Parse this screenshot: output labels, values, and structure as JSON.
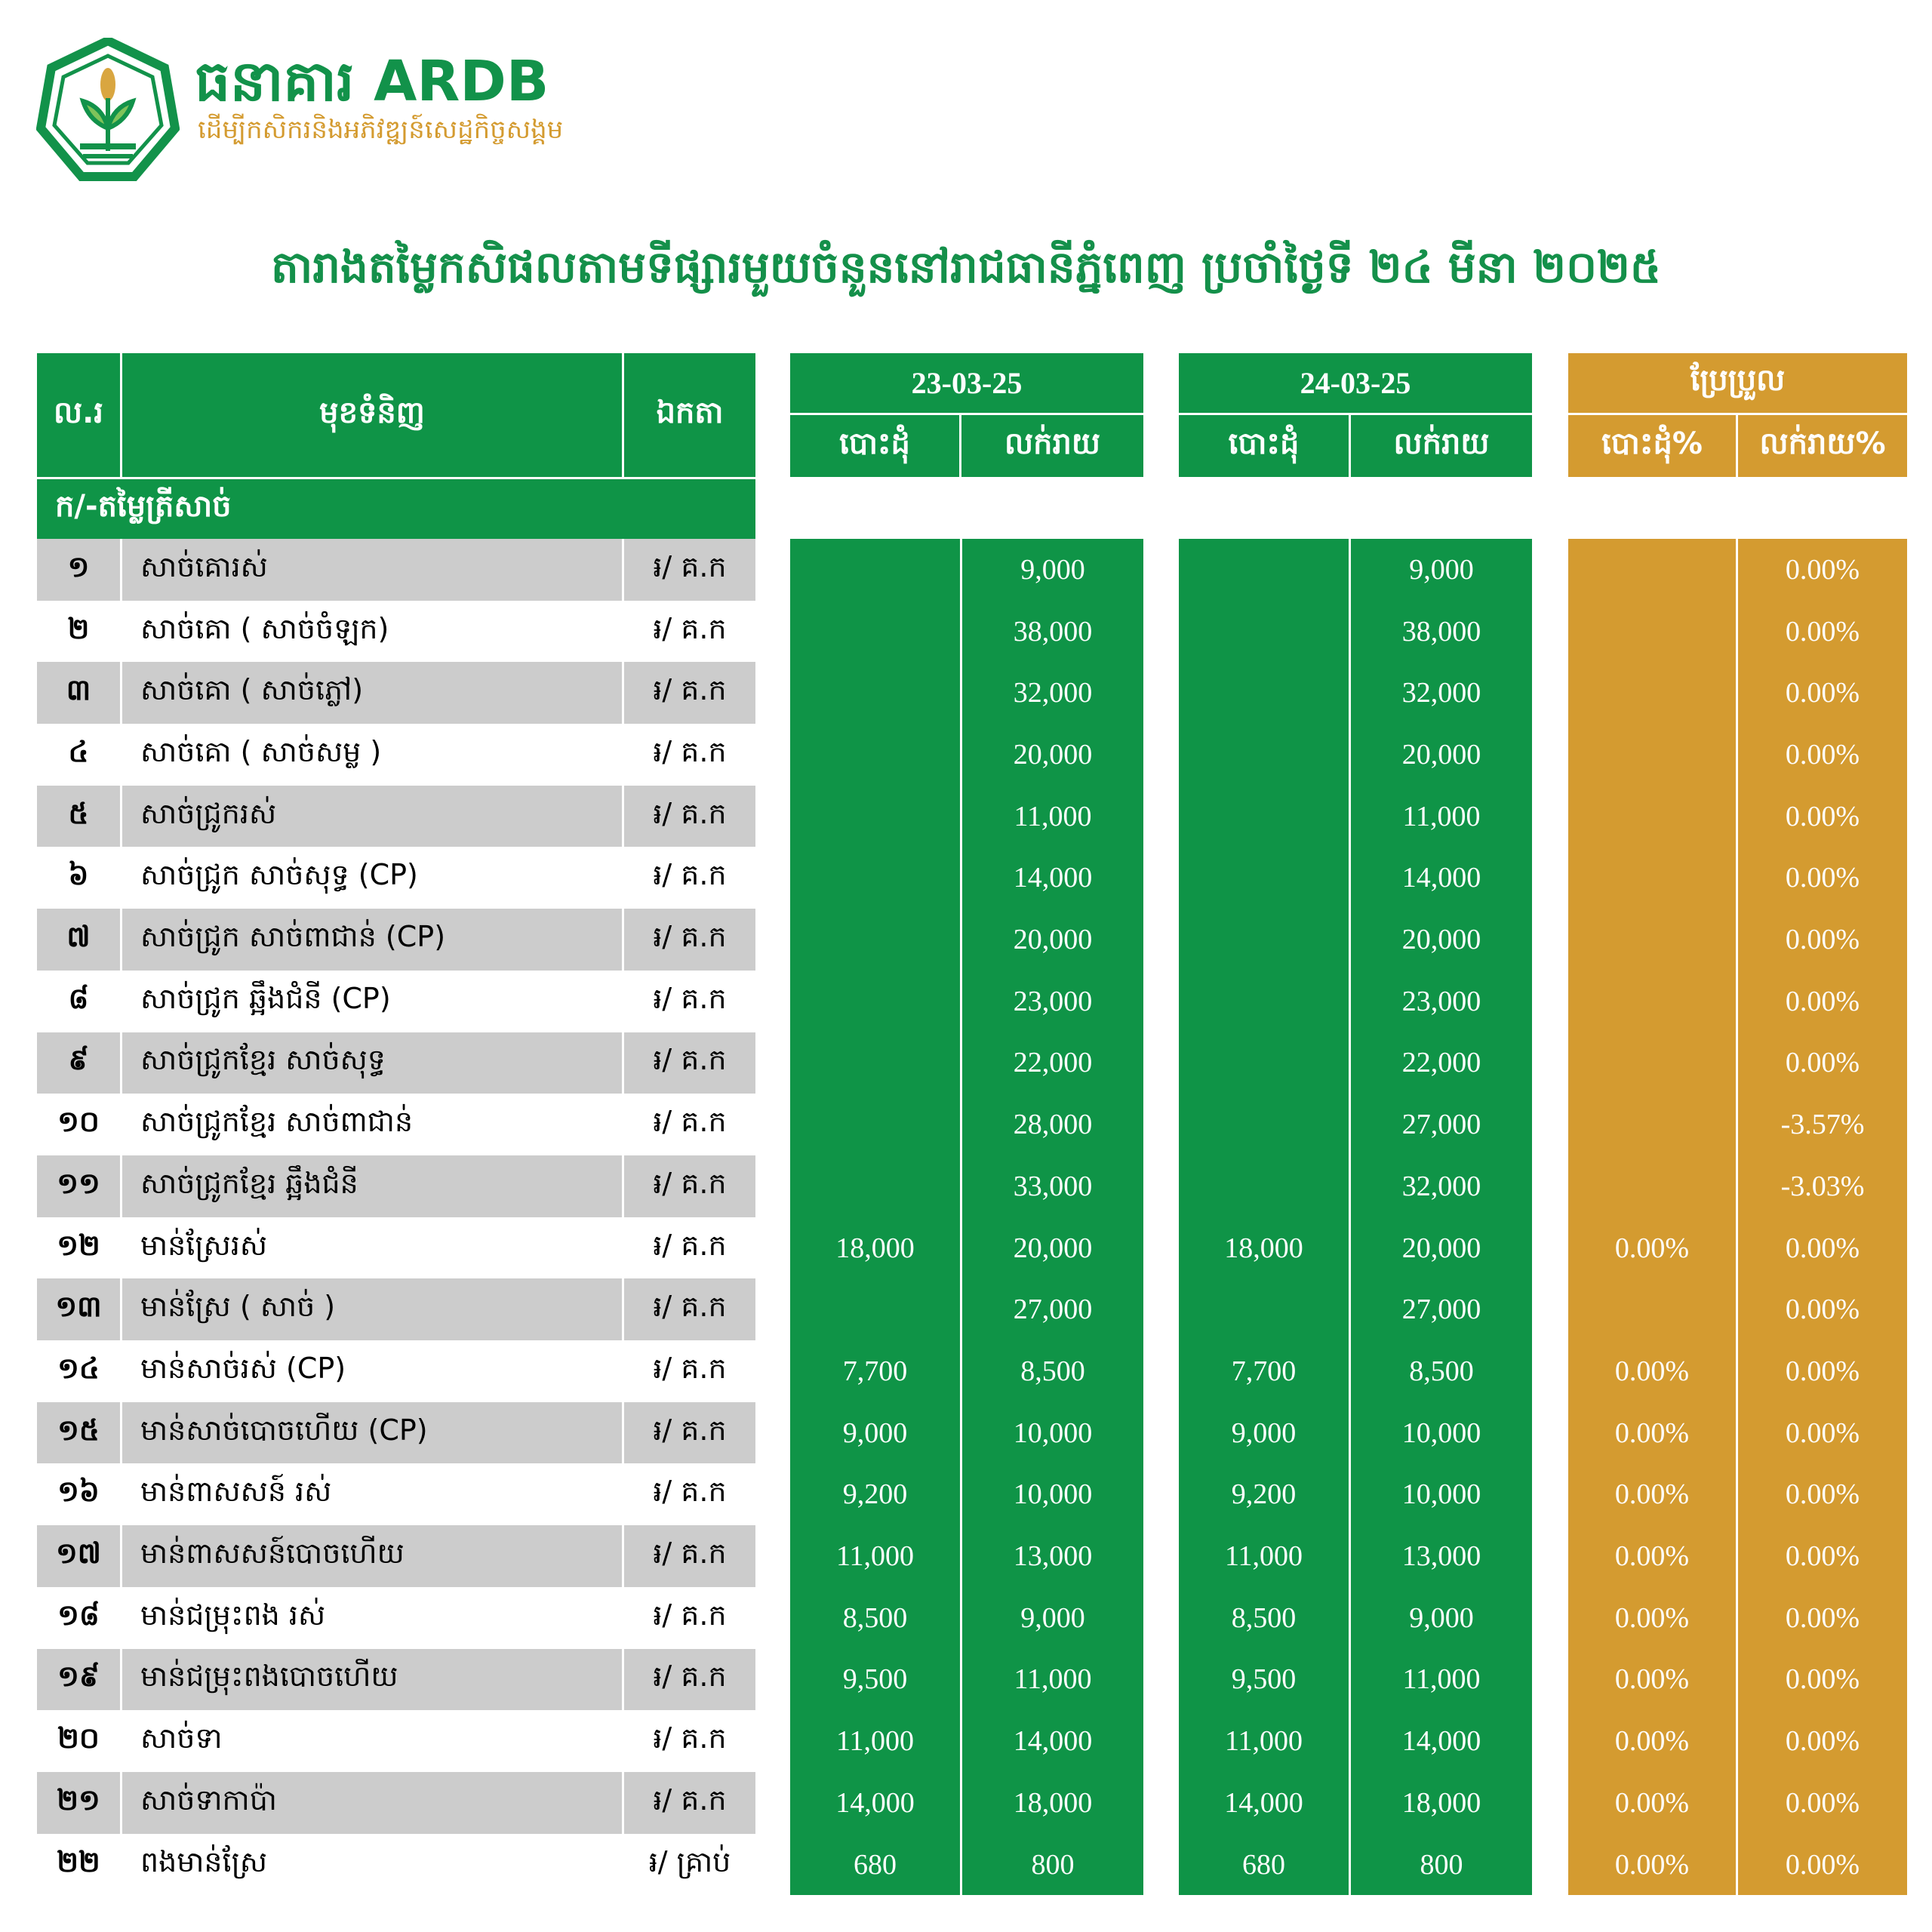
{
  "logo": {
    "name": "ធនាគារ ARDB",
    "tagline": "ដើម្បីកសិករនិងអភិវឌ្ឍន៍សេដ្ឋកិច្ចសង្គម"
  },
  "title": "តារាងតម្លៃកសិផលតាមទីផ្សារមួយចំនួននៅរាជធានីភ្នំពេញ ប្រចាំថ្ងៃទី ២៤ មីនា ២០២៥",
  "colors": {
    "green": "#0f9447",
    "gold": "#d49b30",
    "row_gray": "#cccccc"
  },
  "headers": {
    "no": "ល.រ",
    "item": "មុខទំនិញ",
    "unit": "ឯកតា",
    "date1": "23-03-25",
    "date2": "24-03-25",
    "change": "ប្រែប្រួល",
    "wholesale": "បោះដុំ",
    "retail": "លក់រាយ",
    "wholesale_pct": "បោះដុំ%",
    "retail_pct": "លក់រាយ%"
  },
  "section": "ក/-តម្លៃត្រីសាច់",
  "rows": [
    {
      "no": "១",
      "name": "សាច់គោរស់",
      "unit": "៛/ គ.ក",
      "w1": "",
      "r1": "9,000",
      "w2": "",
      "r2": "9,000",
      "wp": "",
      "rp": "0.00%"
    },
    {
      "no": "២",
      "name": "សាច់គោ ( សាច់ចំឡក)",
      "unit": "៛/ គ.ក",
      "w1": "",
      "r1": "38,000",
      "w2": "",
      "r2": "38,000",
      "wp": "",
      "rp": "0.00%"
    },
    {
      "no": "៣",
      "name": "សាច់គោ ( សាច់ភ្លៅ)",
      "unit": "៛/ គ.ក",
      "w1": "",
      "r1": "32,000",
      "w2": "",
      "r2": "32,000",
      "wp": "",
      "rp": "0.00%"
    },
    {
      "no": "៤",
      "name": "សាច់គោ ( សាច់សម្ល )",
      "unit": "៛/ គ.ក",
      "w1": "",
      "r1": "20,000",
      "w2": "",
      "r2": "20,000",
      "wp": "",
      "rp": "0.00%"
    },
    {
      "no": "៥",
      "name": "សាច់ជ្រូករស់",
      "unit": "៛/ គ.ក",
      "w1": "",
      "r1": "11,000",
      "w2": "",
      "r2": "11,000",
      "wp": "",
      "rp": "0.00%"
    },
    {
      "no": "៦",
      "name": "សាច់ជ្រូក សាច់សុទ្ធ (CP)",
      "unit": "៛/ គ.ក",
      "w1": "",
      "r1": "14,000",
      "w2": "",
      "r2": "14,000",
      "wp": "",
      "rp": "0.00%"
    },
    {
      "no": "៧",
      "name": "សាច់ជ្រូក សាច់ពាជាន់ (CP)",
      "unit": "៛/ គ.ក",
      "w1": "",
      "r1": "20,000",
      "w2": "",
      "r2": "20,000",
      "wp": "",
      "rp": "0.00%"
    },
    {
      "no": "៨",
      "name": "សាច់ជ្រូក ឆ្អឹងជំនី (CP)",
      "unit": "៛/ គ.ក",
      "w1": "",
      "r1": "23,000",
      "w2": "",
      "r2": "23,000",
      "wp": "",
      "rp": "0.00%"
    },
    {
      "no": "៩",
      "name": "សាច់ជ្រូកខ្មែរ សាច់សុទ្ធ",
      "unit": "៛/ គ.ក",
      "w1": "",
      "r1": "22,000",
      "w2": "",
      "r2": "22,000",
      "wp": "",
      "rp": "0.00%"
    },
    {
      "no": "១០",
      "name": "សាច់ជ្រូកខ្មែរ សាច់ពាជាន់",
      "unit": "៛/ គ.ក",
      "w1": "",
      "r1": "28,000",
      "w2": "",
      "r2": "27,000",
      "wp": "",
      "rp": "-3.57%"
    },
    {
      "no": "១១",
      "name": "សាច់ជ្រូកខ្មែរ ឆ្អឹងជំនី",
      "unit": "៛/ គ.ក",
      "w1": "",
      "r1": "33,000",
      "w2": "",
      "r2": "32,000",
      "wp": "",
      "rp": "-3.03%"
    },
    {
      "no": "១២",
      "name": "មាន់ស្រែរស់",
      "unit": "៛/ គ.ក",
      "w1": "18,000",
      "r1": "20,000",
      "w2": "18,000",
      "r2": "20,000",
      "wp": "0.00%",
      "rp": "0.00%"
    },
    {
      "no": "១៣",
      "name": "មាន់ស្រែ ( សាច់ )",
      "unit": "៛/ គ.ក",
      "w1": "",
      "r1": "27,000",
      "w2": "",
      "r2": "27,000",
      "wp": "",
      "rp": "0.00%"
    },
    {
      "no": "១៤",
      "name": "មាន់សាច់រស់ (CP)",
      "unit": "៛/ គ.ក",
      "w1": "7,700",
      "r1": "8,500",
      "w2": "7,700",
      "r2": "8,500",
      "wp": "0.00%",
      "rp": "0.00%"
    },
    {
      "no": "១៥",
      "name": "មាន់សាច់បោចហើយ (CP)",
      "unit": "៛/ គ.ក",
      "w1": "9,000",
      "r1": "10,000",
      "w2": "9,000",
      "r2": "10,000",
      "wp": "0.00%",
      "rp": "0.00%"
    },
    {
      "no": "១៦",
      "name": "មាន់ពាសសន៍ រស់",
      "unit": "៛/ គ.ក",
      "w1": "9,200",
      "r1": "10,000",
      "w2": "9,200",
      "r2": "10,000",
      "wp": "0.00%",
      "rp": "0.00%"
    },
    {
      "no": "១៧",
      "name": "មាន់ពាសសន៍បោចហើយ",
      "unit": "៛/ គ.ក",
      "w1": "11,000",
      "r1": "13,000",
      "w2": "11,000",
      "r2": "13,000",
      "wp": "0.00%",
      "rp": "0.00%"
    },
    {
      "no": "១៨",
      "name": "មាន់ជម្រុះពង រស់",
      "unit": "៛/ គ.ក",
      "w1": "8,500",
      "r1": "9,000",
      "w2": "8,500",
      "r2": "9,000",
      "wp": "0.00%",
      "rp": "0.00%"
    },
    {
      "no": "១៩",
      "name": "មាន់ជម្រុះពងបោចហើយ",
      "unit": "៛/ គ.ក",
      "w1": "9,500",
      "r1": "11,000",
      "w2": "9,500",
      "r2": "11,000",
      "wp": "0.00%",
      "rp": "0.00%"
    },
    {
      "no": "២០",
      "name": "សាច់ទា",
      "unit": "៛/ គ.ក",
      "w1": "11,000",
      "r1": "14,000",
      "w2": "11,000",
      "r2": "14,000",
      "wp": "0.00%",
      "rp": "0.00%"
    },
    {
      "no": "២១",
      "name": "សាច់ទាកាប៉ា",
      "unit": "៛/ គ.ក",
      "w1": "14,000",
      "r1": "18,000",
      "w2": "14,000",
      "r2": "18,000",
      "wp": "0.00%",
      "rp": "0.00%"
    },
    {
      "no": "២២",
      "name": "ពងមាន់ស្រែ",
      "unit": "៛/ គ្រាប់",
      "w1": "680",
      "r1": "800",
      "w2": "680",
      "r2": "800",
      "wp": "0.00%",
      "rp": "0.00%"
    }
  ]
}
